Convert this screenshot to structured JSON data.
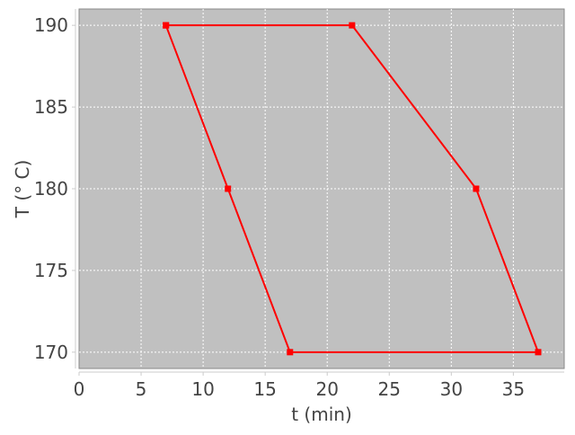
{
  "chart_data": {
    "type": "line",
    "title": "",
    "xlabel": "t (min)",
    "ylabel": "T (° C)",
    "xlim": [
      0,
      39.1
    ],
    "ylim": [
      169,
      191
    ],
    "xticks": [
      0,
      5,
      10,
      15,
      20,
      25,
      30,
      35
    ],
    "yticks": [
      170,
      175,
      180,
      185,
      190
    ],
    "grid": true,
    "legend": "none",
    "series": [
      {
        "x": [
          7,
          22,
          32,
          37,
          17,
          12,
          7
        ],
        "y": [
          190,
          190,
          180,
          170,
          170,
          180,
          190
        ],
        "color": "#ff0000",
        "marker": "square"
      }
    ],
    "plot_background": "#c0c0c0"
  }
}
